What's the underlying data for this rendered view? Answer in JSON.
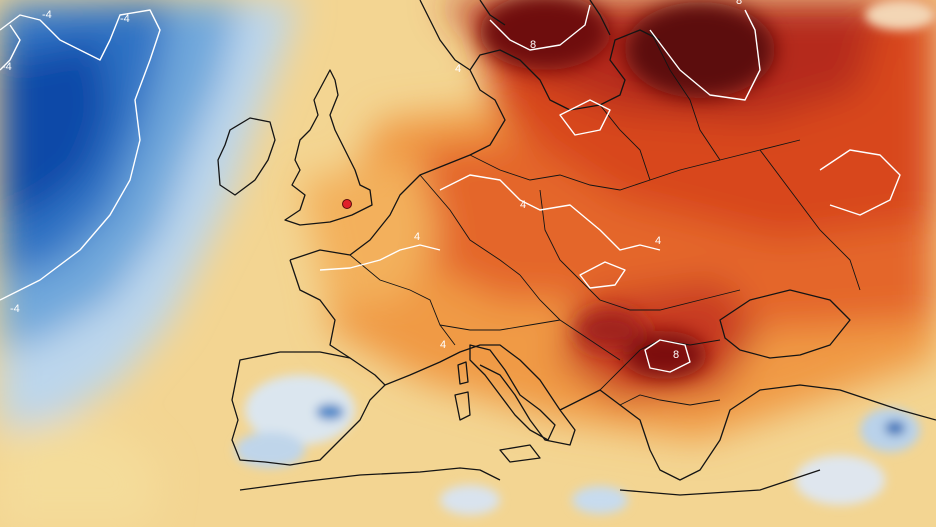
{
  "map": {
    "contour_labels": [
      "-4",
      "-4",
      "-4",
      "4",
      "8",
      "8",
      "8",
      "4",
      "4",
      "4",
      "4",
      "-4"
    ],
    "marker_color": "#e0202a",
    "palette": {
      "deep_blue": "#0a4fb0",
      "blue": "#3f86cf",
      "light_blue": "#a9c9e8",
      "pale": "#e9e4d6",
      "yellow": "#f5d27a",
      "orange": "#f0a24a",
      "red_orange": "#e0622a",
      "red": "#c3321e",
      "dark_red": "#7a0d10",
      "border": "#141414",
      "contour": "#ffffff"
    }
  }
}
